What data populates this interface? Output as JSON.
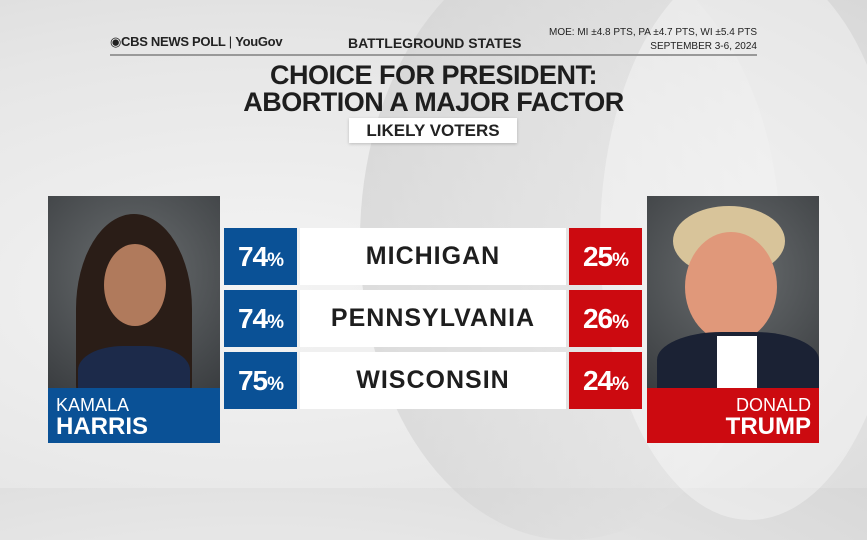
{
  "header": {
    "brand": "CBS NEWS POLL",
    "partner": "YouGov",
    "subtitle": "BATTLEGROUND STATES",
    "moe": "MOE: MI ±4.8 PTS, PA ±4.7 PTS, WI ±5.4 PTS",
    "dates": "SEPTEMBER 3-6, 2024"
  },
  "title_line1": "CHOICE FOR PRESIDENT:",
  "title_line2": "ABORTION A MAJOR FACTOR",
  "population": "LIKELY VOTERS",
  "colors": {
    "harris": "#0a5196",
    "trump": "#cc0a10"
  },
  "candidates": {
    "harris": {
      "first": "KAMALA",
      "last": "HARRIS"
    },
    "trump": {
      "first": "DONALD",
      "last": "TRUMP"
    }
  },
  "chart_data": {
    "type": "table",
    "title": "CHOICE FOR PRESIDENT: ABORTION A MAJOR FACTOR",
    "categories": [
      "MICHIGAN",
      "PENNSYLVANIA",
      "WISCONSIN"
    ],
    "series": [
      {
        "name": "KAMALA HARRIS",
        "values": [
          74,
          74,
          75
        ]
      },
      {
        "name": "DONALD TRUMP",
        "values": [
          25,
          26,
          24
        ]
      }
    ],
    "unit": "%"
  },
  "rows": [
    {
      "state": "MICHIGAN",
      "harris": "74",
      "trump": "25"
    },
    {
      "state": "PENNSYLVANIA",
      "harris": "74",
      "trump": "26"
    },
    {
      "state": "WISCONSIN",
      "harris": "75",
      "trump": "24"
    }
  ],
  "pct_sign": "%"
}
